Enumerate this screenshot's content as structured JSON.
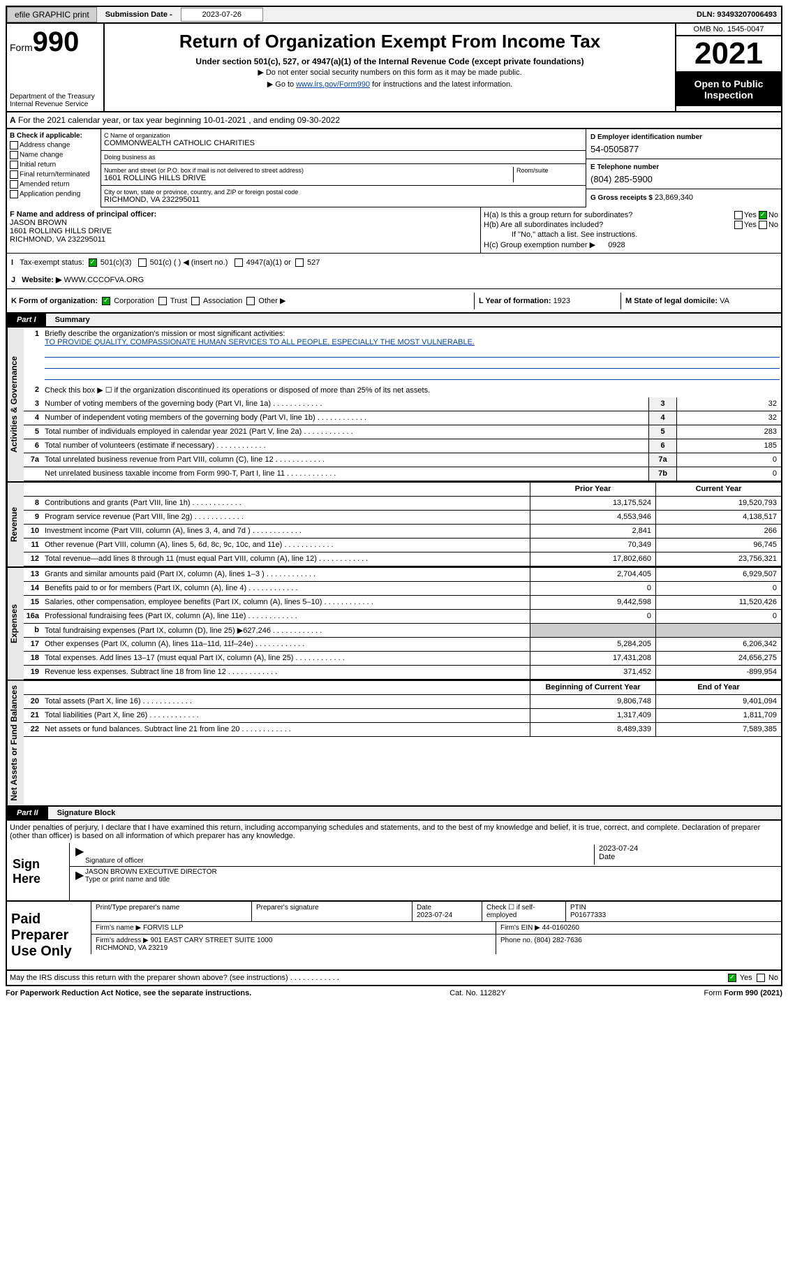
{
  "topbar": {
    "efile": "efile GRAPHIC print",
    "sub_label": "Submission Date - ",
    "sub_date": "2023-07-26",
    "dln": "DLN: 93493207006493"
  },
  "header": {
    "form_prefix": "Form",
    "form_num": "990",
    "dept": "Department of the Treasury\nInternal Revenue Service",
    "title": "Return of Organization Exempt From Income Tax",
    "sub": "Under section 501(c), 527, or 4947(a)(1) of the Internal Revenue Code (except private foundations)",
    "note1": "▶ Do not enter social security numbers on this form as it may be made public.",
    "note2_pre": "▶ Go to ",
    "note2_link": "www.irs.gov/Form990",
    "note2_post": " for instructions and the latest information.",
    "omb": "OMB No. 1545-0047",
    "year": "2021",
    "open": "Open to Public Inspection"
  },
  "line_a": "For the 2021 calendar year, or tax year beginning 10-01-2021   , and ending 09-30-2022",
  "b": {
    "title": "B Check if applicable:",
    "opts": [
      "Address change",
      "Name change",
      "Initial return",
      "Final return/terminated",
      "Amended return",
      "Application pending"
    ]
  },
  "c": {
    "name_label": "C Name of organization",
    "name": "COMMONWEALTH CATHOLIC CHARITIES",
    "dba_label": "Doing business as",
    "dba": "",
    "addr_label": "Number and street (or P.O. box if mail is not delivered to street address)",
    "room_label": "Room/suite",
    "addr": "1601 ROLLING HILLS DRIVE",
    "city_label": "City or town, state or province, country, and ZIP or foreign postal code",
    "city": "RICHMOND, VA  232295011"
  },
  "d": {
    "label": "D Employer identification number",
    "val": "54-0505877"
  },
  "e": {
    "label": "E Telephone number",
    "val": "(804) 285-5900"
  },
  "g": {
    "label": "G Gross receipts $",
    "val": "23,869,340"
  },
  "f": {
    "label": "F  Name and address of principal officer:",
    "name": "JASON BROWN",
    "addr": "1601 ROLLING HILLS DRIVE\nRICHMOND, VA  232295011"
  },
  "h": {
    "a": "H(a)  Is this a group return for subordinates?",
    "b": "H(b)  Are all subordinates included?",
    "b_note": "If \"No,\" attach a list. See instructions.",
    "c": "H(c)  Group exemption number ▶",
    "c_val": "0928",
    "yes": "Yes",
    "no": "No"
  },
  "i": {
    "label": "Tax-exempt status:",
    "opts": [
      "501(c)(3)",
      "501(c) (  ) ◀ (insert no.)",
      "4947(a)(1) or",
      "527"
    ]
  },
  "j": {
    "label": "Website: ▶",
    "val": "WWW.CCCOFVA.ORG"
  },
  "k": {
    "label": "K Form of organization:",
    "opts": [
      "Corporation",
      "Trust",
      "Association",
      "Other ▶"
    ]
  },
  "l_label": "L Year of formation: ",
  "l_val": "1923",
  "m_label": "M State of legal domicile: ",
  "m_val": "VA",
  "part1": {
    "hdr": "Part I",
    "title": "Summary"
  },
  "summary": {
    "q1": "Briefly describe the organization's mission or most significant activities:",
    "mission": "TO PROVIDE QUALITY, COMPASSIONATE HUMAN SERVICES TO ALL PEOPLE, ESPECIALLY THE MOST VULNERABLE.",
    "q2": "Check this box ▶ ☐  if the organization discontinued its operations or disposed of more than 25% of its net assets.",
    "rows_gov": [
      {
        "n": "3",
        "t": "Number of voting members of the governing body (Part VI, line 1a)",
        "box": "3",
        "v": "32"
      },
      {
        "n": "4",
        "t": "Number of independent voting members of the governing body (Part VI, line 1b)",
        "box": "4",
        "v": "32"
      },
      {
        "n": "5",
        "t": "Total number of individuals employed in calendar year 2021 (Part V, line 2a)",
        "box": "5",
        "v": "283"
      },
      {
        "n": "6",
        "t": "Total number of volunteers (estimate if necessary)",
        "box": "6",
        "v": "185"
      },
      {
        "n": "7a",
        "t": "Total unrelated business revenue from Part VIII, column (C), line 12",
        "box": "7a",
        "v": "0"
      },
      {
        "n": "",
        "t": "Net unrelated business taxable income from Form 990-T, Part I, line 11",
        "box": "7b",
        "v": "0"
      }
    ],
    "pyr": "Prior Year",
    "cyr": "Current Year",
    "rev": [
      {
        "n": "8",
        "t": "Contributions and grants (Part VIII, line 1h)",
        "p": "13,175,524",
        "c": "19,520,793"
      },
      {
        "n": "9",
        "t": "Program service revenue (Part VIII, line 2g)",
        "p": "4,553,946",
        "c": "4,138,517"
      },
      {
        "n": "10",
        "t": "Investment income (Part VIII, column (A), lines 3, 4, and 7d )",
        "p": "2,841",
        "c": "266"
      },
      {
        "n": "11",
        "t": "Other revenue (Part VIII, column (A), lines 5, 6d, 8c, 9c, 10c, and 11e)",
        "p": "70,349",
        "c": "96,745"
      },
      {
        "n": "12",
        "t": "Total revenue—add lines 8 through 11 (must equal Part VIII, column (A), line 12)",
        "p": "17,802,660",
        "c": "23,756,321"
      }
    ],
    "exp": [
      {
        "n": "13",
        "t": "Grants and similar amounts paid (Part IX, column (A), lines 1–3 )",
        "p": "2,704,405",
        "c": "6,929,507"
      },
      {
        "n": "14",
        "t": "Benefits paid to or for members (Part IX, column (A), line 4)",
        "p": "0",
        "c": "0"
      },
      {
        "n": "15",
        "t": "Salaries, other compensation, employee benefits (Part IX, column (A), lines 5–10)",
        "p": "9,442,598",
        "c": "11,520,426"
      },
      {
        "n": "16a",
        "t": "Professional fundraising fees (Part IX, column (A), line 11e)",
        "p": "0",
        "c": "0"
      },
      {
        "n": "b",
        "t": "Total fundraising expenses (Part IX, column (D), line 25) ▶627,246",
        "p": "",
        "c": "",
        "grey": true
      },
      {
        "n": "17",
        "t": "Other expenses (Part IX, column (A), lines 11a–11d, 11f–24e)",
        "p": "5,284,205",
        "c": "6,206,342"
      },
      {
        "n": "18",
        "t": "Total expenses. Add lines 13–17 (must equal Part IX, column (A), line 25)",
        "p": "17,431,208",
        "c": "24,656,275"
      },
      {
        "n": "19",
        "t": "Revenue less expenses. Subtract line 18 from line 12",
        "p": "371,452",
        "c": "-899,954"
      }
    ],
    "boy": "Beginning of Current Year",
    "eoy": "End of Year",
    "net": [
      {
        "n": "20",
        "t": "Total assets (Part X, line 16)",
        "p": "9,806,748",
        "c": "9,401,094"
      },
      {
        "n": "21",
        "t": "Total liabilities (Part X, line 26)",
        "p": "1,317,409",
        "c": "1,811,709"
      },
      {
        "n": "22",
        "t": "Net assets or fund balances. Subtract line 21 from line 20",
        "p": "8,489,339",
        "c": "7,589,385"
      }
    ]
  },
  "tabs": {
    "gov": "Activities & Governance",
    "rev": "Revenue",
    "exp": "Expenses",
    "net": "Net Assets or Fund Balances"
  },
  "part2": {
    "hdr": "Part II",
    "title": "Signature Block"
  },
  "sig": {
    "penalties": "Under penalties of perjury, I declare that I have examined this return, including accompanying schedules and statements, and to the best of my knowledge and belief, it is true, correct, and complete. Declaration of preparer (other than officer) is based on all information of which preparer has any knowledge.",
    "sign_here": "Sign Here",
    "officer_sig": "Signature of officer",
    "officer_name": "JASON BROWN  EXECUTIVE DIRECTOR",
    "officer_type": "Type or print name and title",
    "date_label": "Date",
    "date": "2023-07-24"
  },
  "prep": {
    "title": "Paid Preparer Use Only",
    "name_label": "Print/Type preparer's name",
    "sig_label": "Preparer's signature",
    "date_label": "Date",
    "date": "2023-07-24",
    "check_label": "Check ☐ if self-employed",
    "ptin_label": "PTIN",
    "ptin": "P01677333",
    "firm_name_label": "Firm's name      ▶",
    "firm_name": "FORVIS LLP",
    "firm_ein_label": "Firm's EIN ▶",
    "firm_ein": "44-0160260",
    "firm_addr_label": "Firm's address ▶",
    "firm_addr": "901 EAST CARY STREET SUITE 1000\nRICHMOND, VA  23219",
    "phone_label": "Phone no.",
    "phone": "(804) 282-7636"
  },
  "footer": {
    "irs_q": "May the IRS discuss this return with the preparer shown above? (see instructions)",
    "yes": "Yes",
    "no": "No",
    "paperwork": "For Paperwork Reduction Act Notice, see the separate instructions.",
    "cat": "Cat. No. 11282Y",
    "form": "Form 990 (2021)"
  }
}
